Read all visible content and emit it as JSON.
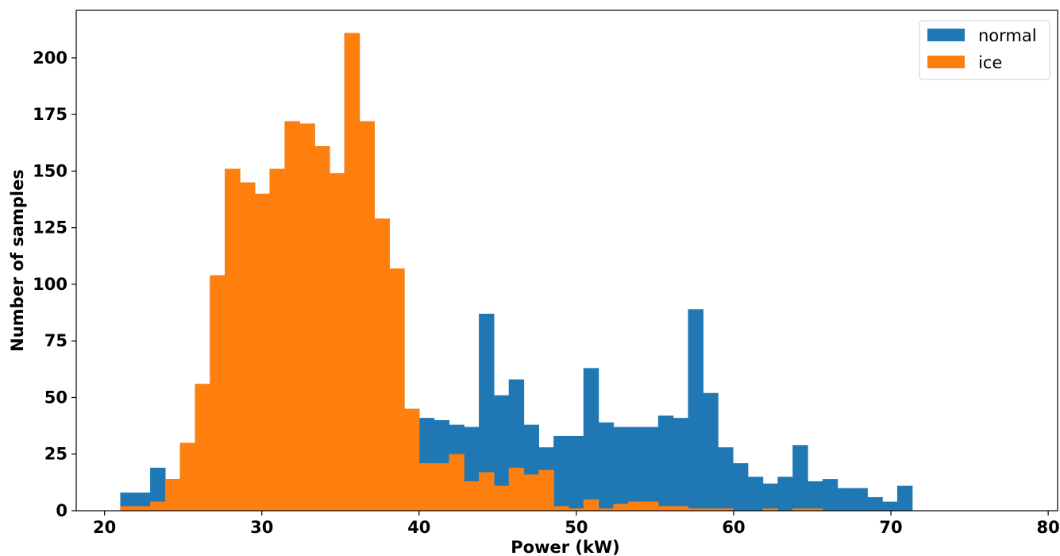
{
  "chart_data": {
    "type": "bar",
    "subtype": "overlaid-histogram",
    "xlabel": "Power (kW)",
    "ylabel": "Number of samples",
    "xlim": [
      18.2,
      80.6
    ],
    "ylim": [
      0,
      221
    ],
    "xticks": [
      20,
      30,
      40,
      50,
      60,
      70,
      80
    ],
    "yticks": [
      0,
      25,
      50,
      75,
      100,
      125,
      150,
      175,
      200
    ],
    "grid": false,
    "legend_position": "top-right",
    "series": [
      {
        "name": "normal",
        "color": "#1f77b4",
        "bin_start": 21.0,
        "bin_width": 0.95,
        "values": [
          8,
          8,
          19,
          14,
          30,
          56,
          104,
          151,
          145,
          140,
          151,
          172,
          171,
          161,
          149,
          211,
          172,
          129,
          107,
          45,
          41,
          40,
          38,
          37,
          87,
          51,
          58,
          38,
          28,
          33,
          33,
          63,
          39,
          37,
          37,
          37,
          42,
          41,
          89,
          52,
          28,
          21,
          15,
          12,
          15,
          29,
          13,
          14,
          10,
          10,
          6,
          4,
          11
        ]
      },
      {
        "name": "ice",
        "color": "#ff7f0e",
        "bin_start": 21.0,
        "bin_width": 0.95,
        "values": [
          2,
          2,
          4,
          14,
          30,
          56,
          104,
          151,
          145,
          140,
          151,
          172,
          171,
          161,
          149,
          211,
          172,
          129,
          107,
          45,
          21,
          21,
          25,
          13,
          17,
          11,
          19,
          16,
          18,
          2,
          1,
          5,
          1,
          3,
          4,
          4,
          2,
          2,
          1,
          1,
          1,
          0,
          0,
          1,
          0,
          1,
          1,
          0,
          0,
          0,
          0,
          0,
          0
        ]
      }
    ]
  }
}
